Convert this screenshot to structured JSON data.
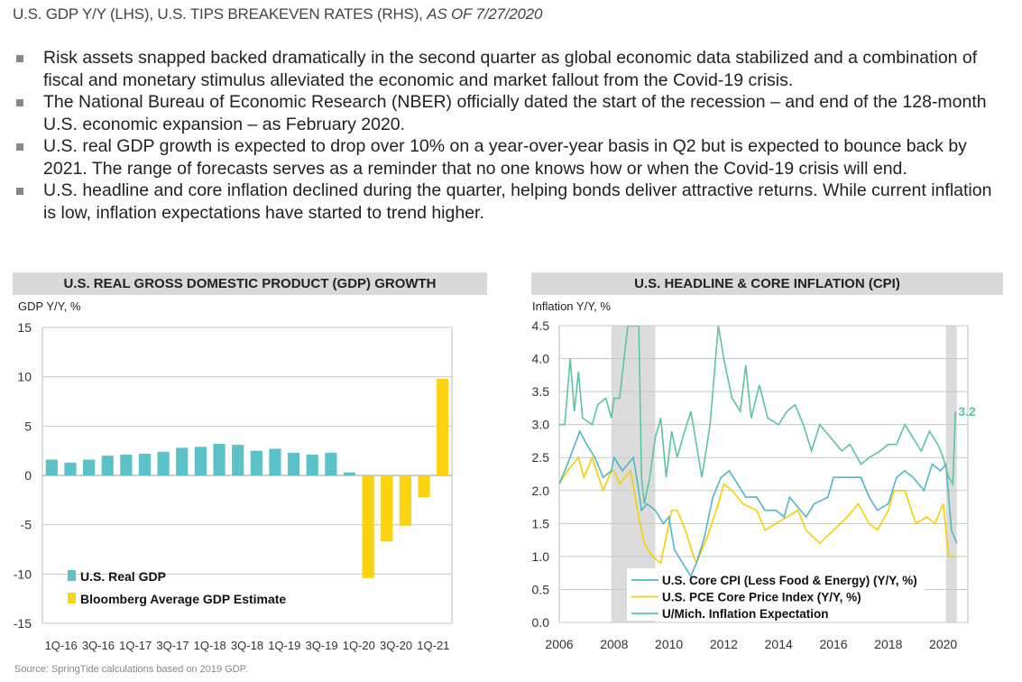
{
  "subtitle": {
    "main": "U.S. GDP Y/Y (LHS), U.S. TIPS BREAKEVEN RATES (RHS), ",
    "date": "AS OF 7/27/2020"
  },
  "bullets": [
    "Risk assets snapped backed dramatically in the second quarter as global economic data stabilized and a combination of fiscal and monetary stimulus alleviated the economic and market fallout from the Covid-19 crisis.",
    "The National Bureau of Economic Research (NBER) officially dated the start of the recession – and end of the 128-month U.S. economic expansion – as February 2020.",
    "U.S. real GDP growth is expected to drop over 10% on a year-over-year basis in Q2 but is expected to bounce back by 2021. The range of forecasts serves as a reminder that no one knows how or when the Covid-19 crisis will end.",
    "U.S. headline and core inflation declined during the quarter, helping bonds deliver attractive returns. While current inflation is low, inflation expectations have started to trend higher."
  ],
  "source": "Source: SpringTide calculations based on 2019 GDP.",
  "chart_data": [
    {
      "type": "bar",
      "title": "U.S. REAL GROSS DOMESTIC PRODUCT (GDP) GROWTH",
      "ylabel": "GDP Y/Y, %",
      "ylim": [
        -15,
        15
      ],
      "yticks": [
        15,
        10,
        5,
        0,
        -5,
        -10,
        -15
      ],
      "grid": true,
      "legend_placement": "bottom-left",
      "categories": [
        "1Q-16",
        "2Q-16",
        "3Q-16",
        "4Q-16",
        "1Q-17",
        "2Q-17",
        "3Q-17",
        "4Q-17",
        "1Q-18",
        "2Q-18",
        "3Q-18",
        "4Q-18",
        "1Q-19",
        "2Q-19",
        "3Q-19",
        "4Q-19",
        "1Q-20",
        "2Q-20",
        "3Q-20",
        "4Q-20",
        "1Q-21",
        "2Q-21"
      ],
      "tick_labels": [
        "1Q-16",
        "3Q-16",
        "1Q-17",
        "3Q-17",
        "1Q-18",
        "3Q-18",
        "1Q-19",
        "3Q-19",
        "1Q-20",
        "3Q-20",
        "1Q-21"
      ],
      "series": [
        {
          "name": "U.S. Real GDP",
          "color": "#5bc3c8",
          "values": [
            1.6,
            1.3,
            1.6,
            2.0,
            2.1,
            2.2,
            2.4,
            2.8,
            2.9,
            3.2,
            3.1,
            2.5,
            2.7,
            2.3,
            2.1,
            2.3,
            0.3,
            null,
            null,
            null,
            null,
            null
          ]
        },
        {
          "name": "Bloomberg Average GDP Estimate",
          "color": "#fdd20f",
          "values": [
            null,
            null,
            null,
            null,
            null,
            null,
            null,
            null,
            null,
            null,
            null,
            null,
            null,
            null,
            null,
            null,
            null,
            -10.4,
            -6.7,
            -5.1,
            -2.2,
            9.8
          ]
        }
      ]
    },
    {
      "type": "line",
      "title": "U.S. HEADLINE & CORE INFLATION (CPI)",
      "ylabel": "Inflation Y/Y, %",
      "ylim": [
        0,
        4.5
      ],
      "xlim": [
        2006,
        2020.9
      ],
      "yticks": [
        "0.0",
        "0.5",
        "1.0",
        "1.5",
        "2.0",
        "2.5",
        "3.0",
        "3.5",
        "4.0",
        "4.5"
      ],
      "xticks": [
        "2006",
        "2008",
        "2010",
        "2012",
        "2014",
        "2016",
        "2018",
        "2020"
      ],
      "grid": true,
      "legend_placement": "bottom-center",
      "recession_shading": [
        [
          2007.9,
          2009.5
        ],
        [
          2020.1,
          2020.5
        ]
      ],
      "annotation": "3.2",
      "series": [
        {
          "name": "U.S. Core CPI (Less Food & Energy) (Y/Y, %)",
          "color": "#4fb8c4",
          "points": [
            [
              2006.0,
              2.1
            ],
            [
              2006.3,
              2.4
            ],
            [
              2006.75,
              2.9
            ],
            [
              2007.0,
              2.7
            ],
            [
              2007.3,
              2.5
            ],
            [
              2007.6,
              2.2
            ],
            [
              2007.9,
              2.3
            ],
            [
              2008.0,
              2.5
            ],
            [
              2008.3,
              2.3
            ],
            [
              2008.7,
              2.5
            ],
            [
              2008.9,
              2.0
            ],
            [
              2009.0,
              1.7
            ],
            [
              2009.2,
              1.8
            ],
            [
              2009.5,
              1.7
            ],
            [
              2009.8,
              1.5
            ],
            [
              2010.0,
              1.6
            ],
            [
              2010.2,
              1.1
            ],
            [
              2010.5,
              0.9
            ],
            [
              2010.8,
              0.7
            ],
            [
              2011.0,
              0.9
            ],
            [
              2011.3,
              1.3
            ],
            [
              2011.6,
              1.9
            ],
            [
              2011.9,
              2.2
            ],
            [
              2012.2,
              2.3
            ],
            [
              2012.5,
              2.1
            ],
            [
              2012.8,
              1.9
            ],
            [
              2013.2,
              1.9
            ],
            [
              2013.5,
              1.7
            ],
            [
              2013.9,
              1.7
            ],
            [
              2014.2,
              1.6
            ],
            [
              2014.4,
              1.9
            ],
            [
              2014.8,
              1.7
            ],
            [
              2015.0,
              1.6
            ],
            [
              2015.3,
              1.8
            ],
            [
              2015.8,
              1.9
            ],
            [
              2016.0,
              2.2
            ],
            [
              2016.3,
              2.2
            ],
            [
              2016.7,
              2.2
            ],
            [
              2017.0,
              2.2
            ],
            [
              2017.3,
              1.9
            ],
            [
              2017.6,
              1.7
            ],
            [
              2018.0,
              1.8
            ],
            [
              2018.3,
              2.2
            ],
            [
              2018.6,
              2.3
            ],
            [
              2018.9,
              2.2
            ],
            [
              2019.3,
              2.0
            ],
            [
              2019.6,
              2.4
            ],
            [
              2019.9,
              2.3
            ],
            [
              2020.1,
              2.4
            ],
            [
              2020.3,
              1.4
            ],
            [
              2020.5,
              1.2
            ]
          ]
        },
        {
          "name": "U.S. PCE Core Price Index (Y/Y, %)",
          "color": "#f5d000",
          "points": [
            [
              2006.0,
              2.1
            ],
            [
              2006.3,
              2.3
            ],
            [
              2006.7,
              2.5
            ],
            [
              2006.9,
              2.2
            ],
            [
              2007.2,
              2.5
            ],
            [
              2007.6,
              2.0
            ],
            [
              2007.9,
              2.3
            ],
            [
              2008.0,
              2.3
            ],
            [
              2008.2,
              2.1
            ],
            [
              2008.6,
              2.3
            ],
            [
              2008.9,
              1.6
            ],
            [
              2009.1,
              1.2
            ],
            [
              2009.4,
              1.0
            ],
            [
              2009.7,
              0.9
            ],
            [
              2009.9,
              1.3
            ],
            [
              2010.1,
              1.7
            ],
            [
              2010.3,
              1.7
            ],
            [
              2010.6,
              1.4
            ],
            [
              2010.9,
              1.0
            ],
            [
              2011.0,
              0.9
            ],
            [
              2011.4,
              1.3
            ],
            [
              2011.8,
              1.8
            ],
            [
              2012.0,
              2.1
            ],
            [
              2012.3,
              2.0
            ],
            [
              2012.7,
              1.8
            ],
            [
              2013.2,
              1.7
            ],
            [
              2013.5,
              1.4
            ],
            [
              2013.9,
              1.5
            ],
            [
              2014.3,
              1.6
            ],
            [
              2014.7,
              1.7
            ],
            [
              2015.0,
              1.4
            ],
            [
              2015.5,
              1.2
            ],
            [
              2016.0,
              1.4
            ],
            [
              2016.5,
              1.6
            ],
            [
              2016.9,
              1.8
            ],
            [
              2017.3,
              1.5
            ],
            [
              2017.6,
              1.4
            ],
            [
              2018.0,
              1.7
            ],
            [
              2018.2,
              2.0
            ],
            [
              2018.6,
              2.0
            ],
            [
              2019.0,
              1.5
            ],
            [
              2019.4,
              1.6
            ],
            [
              2019.7,
              1.5
            ],
            [
              2020.0,
              1.8
            ],
            [
              2020.2,
              1.0
            ],
            [
              2020.4,
              1.0
            ]
          ]
        },
        {
          "name": "U/Mich. Inflation Expectation",
          "color": "#5cc59a",
          "points": [
            [
              2006.0,
              3.0
            ],
            [
              2006.2,
              3.0
            ],
            [
              2006.4,
              4.0
            ],
            [
              2006.55,
              3.2
            ],
            [
              2006.7,
              3.8
            ],
            [
              2006.85,
              3.1
            ],
            [
              2007.2,
              3.0
            ],
            [
              2007.4,
              3.3
            ],
            [
              2007.7,
              3.4
            ],
            [
              2007.9,
              3.1
            ],
            [
              2008.0,
              3.4
            ],
            [
              2008.2,
              3.4
            ],
            [
              2008.5,
              4.5
            ],
            [
              2008.9,
              4.5
            ],
            [
              2009.0,
              2.2
            ],
            [
              2009.1,
              1.8
            ],
            [
              2009.3,
              2.2
            ],
            [
              2009.5,
              2.8
            ],
            [
              2009.7,
              3.1
            ],
            [
              2009.9,
              2.2
            ],
            [
              2010.1,
              2.9
            ],
            [
              2010.3,
              2.5
            ],
            [
              2010.5,
              2.8
            ],
            [
              2010.8,
              3.2
            ],
            [
              2011.0,
              2.7
            ],
            [
              2011.2,
              2.2
            ],
            [
              2011.5,
              3.0
            ],
            [
              2011.8,
              4.5
            ],
            [
              2012.0,
              4.0
            ],
            [
              2012.3,
              3.4
            ],
            [
              2012.6,
              3.2
            ],
            [
              2012.8,
              3.9
            ],
            [
              2013.0,
              3.1
            ],
            [
              2013.3,
              3.6
            ],
            [
              2013.6,
              3.1
            ],
            [
              2014.0,
              3.0
            ],
            [
              2014.3,
              3.2
            ],
            [
              2014.6,
              3.3
            ],
            [
              2014.9,
              3.0
            ],
            [
              2015.2,
              2.6
            ],
            [
              2015.5,
              3.0
            ],
            [
              2015.9,
              2.8
            ],
            [
              2016.3,
              2.6
            ],
            [
              2016.6,
              2.7
            ],
            [
              2017.0,
              2.4
            ],
            [
              2017.3,
              2.5
            ],
            [
              2017.7,
              2.6
            ],
            [
              2018.0,
              2.7
            ],
            [
              2018.3,
              2.7
            ],
            [
              2018.6,
              3.0
            ],
            [
              2018.9,
              2.8
            ],
            [
              2019.2,
              2.6
            ],
            [
              2019.5,
              2.9
            ],
            [
              2019.8,
              2.7
            ],
            [
              2020.0,
              2.5
            ],
            [
              2020.2,
              2.2
            ],
            [
              2020.35,
              2.1
            ],
            [
              2020.45,
              3.2
            ]
          ]
        }
      ]
    }
  ]
}
